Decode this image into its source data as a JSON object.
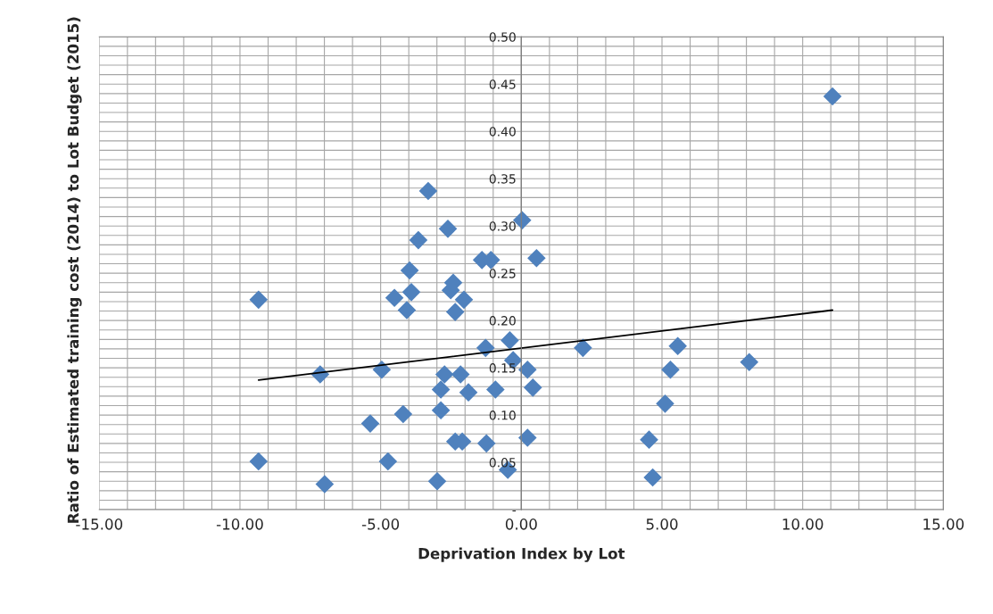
{
  "chart_data": {
    "type": "scatter",
    "xlabel": "Deprivation Index by Lot",
    "ylabel": "Ratio of Estimated training cost (2014) to Lot Budget (2015)",
    "xlim": [
      -15,
      15
    ],
    "ylim": [
      0,
      0.5
    ],
    "xticks": [
      {
        "value": -15,
        "label": "-15.00"
      },
      {
        "value": -10,
        "label": "-10.00"
      },
      {
        "value": -5,
        "label": "-5.00"
      },
      {
        "value": 0,
        "label": "0.00"
      },
      {
        "value": 5,
        "label": "5.00"
      },
      {
        "value": 10,
        "label": "10.00"
      },
      {
        "value": 15,
        "label": "15.00"
      }
    ],
    "yticks": [
      {
        "value": 0,
        "label": "-"
      },
      {
        "value": 0.05,
        "label": "0.05"
      },
      {
        "value": 0.1,
        "label": "0.10"
      },
      {
        "value": 0.15,
        "label": "0.15"
      },
      {
        "value": 0.2,
        "label": "0.20"
      },
      {
        "value": 0.25,
        "label": "0.25"
      },
      {
        "value": 0.3,
        "label": "0.30"
      },
      {
        "value": 0.35,
        "label": "0.35"
      },
      {
        "value": 0.4,
        "label": "0.40"
      },
      {
        "value": 0.45,
        "label": "0.45"
      },
      {
        "value": 0.5,
        "label": "0.50"
      }
    ],
    "grid": true,
    "legend": false,
    "series": [
      {
        "color": "#4f81bd",
        "marker": "diamond",
        "x": [
          11.06,
          -9.34,
          -9.34,
          -7.15,
          -6.99,
          -5.37,
          -4.96,
          -4.74,
          -4.51,
          -4.2,
          -4.07,
          -3.97,
          -3.91,
          -3.66,
          -3.31,
          -2.99,
          -2.86,
          -2.86,
          -2.73,
          -2.61,
          -2.51,
          -2.42,
          -2.35,
          -2.35,
          -2.16,
          -2.1,
          -2.04,
          -1.88,
          -1.4,
          -1.27,
          -1.24,
          -1.08,
          -0.92,
          -0.48,
          -0.41,
          -0.29,
          0.03,
          0.22,
          0.22,
          0.41,
          0.54,
          2.19,
          4.54,
          4.67,
          5.11,
          5.3,
          5.56,
          8.1
        ],
        "values": [
          0.437,
          0.222,
          0.051,
          0.143,
          0.027,
          0.091,
          0.148,
          0.051,
          0.224,
          0.101,
          0.211,
          0.253,
          0.23,
          0.285,
          0.337,
          0.03,
          0.105,
          0.127,
          0.143,
          0.297,
          0.232,
          0.24,
          0.209,
          0.072,
          0.143,
          0.072,
          0.222,
          0.124,
          0.264,
          0.171,
          0.07,
          0.264,
          0.127,
          0.042,
          0.179,
          0.158,
          0.306,
          0.076,
          0.148,
          0.129,
          0.266,
          0.171,
          0.074,
          0.034,
          0.112,
          0.148,
          0.173,
          0.156
        ]
      },
      {
        "type": "line",
        "color": "#000000",
        "marker": "none",
        "line_style": "solid",
        "x": [
          -9.34,
          11.06
        ],
        "values": [
          0.137,
          0.211
        ]
      }
    ]
  }
}
